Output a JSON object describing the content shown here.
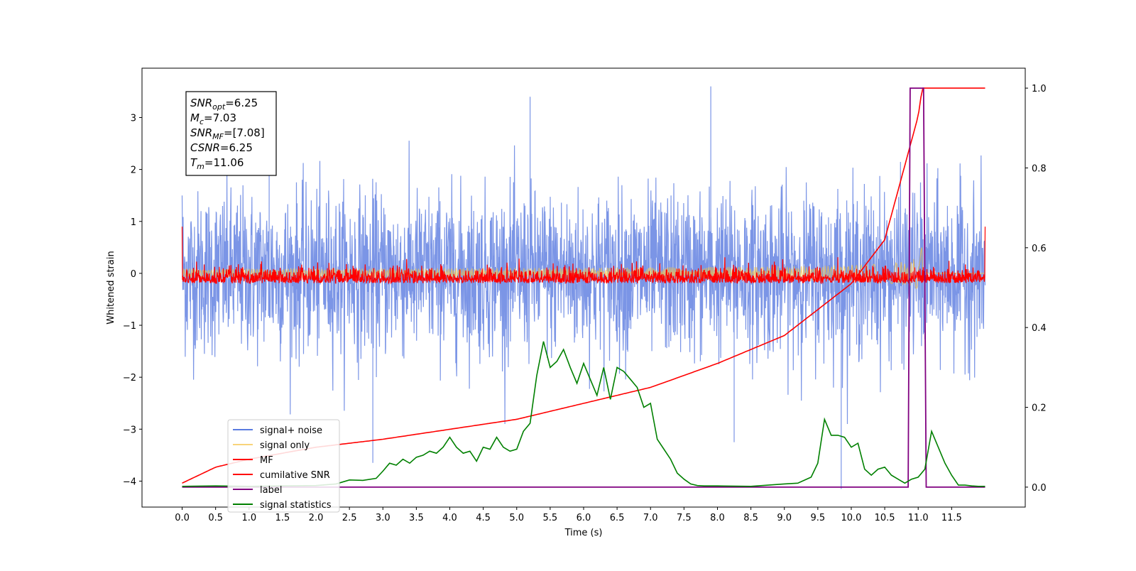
{
  "chart_data": {
    "type": "line",
    "xlabel": "Time (s)",
    "ylabel": "Whitened strain",
    "xlim": [
      -0.6,
      12.6
    ],
    "ylim_left": [
      -4.5,
      3.95
    ],
    "ylim_right": [
      -0.05,
      1.05
    ],
    "x_ticks": [
      "0.0",
      "0.5",
      "1.0",
      "1.5",
      "2.0",
      "2.5",
      "3.0",
      "3.5",
      "4.0",
      "4.5",
      "5.0",
      "5.5",
      "6.0",
      "6.5",
      "7.0",
      "7.5",
      "8.0",
      "8.5",
      "9.0",
      "9.5",
      "10.0",
      "10.5",
      "11.0",
      "11.5"
    ],
    "y_ticks_left": [
      "3",
      "2",
      "1",
      "0",
      "−1",
      "−2",
      "−3",
      "−4"
    ],
    "y_ticks_right": [
      "1.0",
      "0.8",
      "0.6",
      "0.4",
      "0.2",
      "0.0"
    ],
    "grid": false,
    "legend_position": "lower-left",
    "info_box": [
      {
        "name": "SNR",
        "sub": "opt",
        "value": "=6.25"
      },
      {
        "name": "M",
        "sub": "c",
        "value": "=7.03"
      },
      {
        "name": "SNR",
        "sub": "MF",
        "value": "=[7.08]"
      },
      {
        "name": "CSNR",
        "sub": "",
        "value": "=6.25"
      },
      {
        "name": "T",
        "sub": "m",
        "value": "=11.06"
      }
    ],
    "series": [
      {
        "name": "signal+ noise",
        "color": "#5a7be0",
        "axis": "left",
        "time_range": [
          0.0,
          12.0
        ],
        "envelope": [
          -1.7,
          2.1
        ],
        "extremes": [
          3.6,
          -4.2
        ]
      },
      {
        "name": "signal only",
        "color": "#f5c242",
        "axis": "left",
        "time_range": [
          0.0,
          12.0
        ],
        "merger_time": 11.06,
        "peak_amplitude": 0.65
      },
      {
        "name": "MF",
        "color": "#ff0000",
        "axis": "left",
        "time_range": [
          0.0,
          12.0
        ],
        "envelope": [
          -0.2,
          0.25
        ]
      },
      {
        "name": "cumilative SNR",
        "color": "#ff0000",
        "axis": "right",
        "x": [
          0.0,
          0.5,
          1.0,
          2.0,
          3.0,
          4.0,
          5.0,
          6.0,
          7.0,
          8.0,
          9.0,
          10.0,
          10.5,
          11.0,
          11.06,
          12.0
        ],
        "y": [
          0.01,
          0.05,
          0.07,
          0.1,
          0.12,
          0.145,
          0.17,
          0.21,
          0.25,
          0.31,
          0.38,
          0.51,
          0.62,
          0.93,
          1.0,
          1.0
        ]
      },
      {
        "name": "label",
        "color": "#800080",
        "axis": "right",
        "x": [
          0.0,
          10.85,
          10.88,
          11.08,
          11.12,
          12.0
        ],
        "y": [
          0.0,
          0.0,
          1.0,
          1.0,
          0.0,
          0.0
        ]
      },
      {
        "name": "signal statistics",
        "color": "#008000",
        "axis": "right",
        "x": [
          0.0,
          0.5,
          1.0,
          1.5,
          2.0,
          2.3,
          2.5,
          2.7,
          2.9,
          3.0,
          3.1,
          3.2,
          3.3,
          3.4,
          3.5,
          3.6,
          3.7,
          3.8,
          3.9,
          4.0,
          4.1,
          4.2,
          4.3,
          4.4,
          4.5,
          4.6,
          4.7,
          4.8,
          4.9,
          5.0,
          5.1,
          5.2,
          5.3,
          5.4,
          5.5,
          5.6,
          5.7,
          5.8,
          5.9,
          6.0,
          6.1,
          6.2,
          6.3,
          6.4,
          6.5,
          6.6,
          6.7,
          6.8,
          6.9,
          7.0,
          7.1,
          7.2,
          7.3,
          7.4,
          7.5,
          7.6,
          7.7,
          7.8,
          8.0,
          8.5,
          9.0,
          9.2,
          9.4,
          9.5,
          9.6,
          9.7,
          9.8,
          9.9,
          10.0,
          10.1,
          10.2,
          10.3,
          10.4,
          10.5,
          10.6,
          10.7,
          10.8,
          10.9,
          11.0,
          11.1,
          11.2,
          11.3,
          11.4,
          11.5,
          11.6,
          11.7,
          11.8,
          11.9,
          12.0
        ],
        "y": [
          0.002,
          0.003,
          0.002,
          0.003,
          0.004,
          0.008,
          0.018,
          0.017,
          0.022,
          0.04,
          0.06,
          0.055,
          0.07,
          0.06,
          0.075,
          0.08,
          0.09,
          0.085,
          0.1,
          0.125,
          0.1,
          0.085,
          0.09,
          0.065,
          0.1,
          0.095,
          0.125,
          0.1,
          0.09,
          0.095,
          0.14,
          0.16,
          0.28,
          0.365,
          0.3,
          0.315,
          0.345,
          0.3,
          0.26,
          0.31,
          0.27,
          0.23,
          0.3,
          0.22,
          0.3,
          0.29,
          0.27,
          0.25,
          0.2,
          0.21,
          0.12,
          0.095,
          0.07,
          0.035,
          0.02,
          0.008,
          0.004,
          0.003,
          0.003,
          0.002,
          0.008,
          0.01,
          0.025,
          0.06,
          0.17,
          0.13,
          0.13,
          0.125,
          0.1,
          0.11,
          0.045,
          0.03,
          0.045,
          0.05,
          0.03,
          0.02,
          0.01,
          0.02,
          0.025,
          0.045,
          0.14,
          0.1,
          0.06,
          0.03,
          0.005,
          0.005,
          0.003,
          0.002,
          0.002
        ]
      }
    ]
  }
}
